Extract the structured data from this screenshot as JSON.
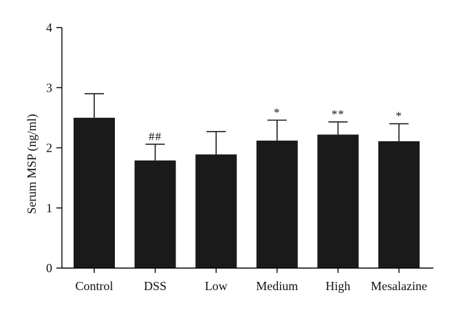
{
  "chart_data": {
    "type": "bar",
    "title": "",
    "xlabel": "",
    "ylabel": "Serum MSP (ng/ml)",
    "ylim": [
      0,
      4
    ],
    "yticks": [
      0,
      1,
      2,
      3,
      4
    ],
    "grid": false,
    "categories": [
      "Control",
      "DSS",
      "Low",
      "Medium",
      "High",
      "Mesalazine"
    ],
    "values": [
      2.5,
      1.79,
      1.89,
      2.12,
      2.22,
      2.11
    ],
    "errors": [
      0.4,
      0.27,
      0.38,
      0.34,
      0.21,
      0.29
    ],
    "annotations": [
      "",
      "##",
      "",
      "*",
      "**",
      "*"
    ],
    "bar_color": "#1a1a1a"
  }
}
